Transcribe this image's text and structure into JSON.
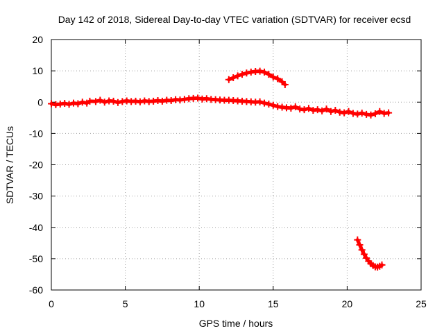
{
  "chart_data": {
    "type": "scatter",
    "title": "Day 142 of 2018, Sidereal Day-to-day VTEC variation (SDTVAR) for receiver ecsd",
    "xlabel": "GPS time / hours",
    "ylabel": "SDTVAR / TECUs",
    "xlim": [
      0,
      25
    ],
    "ylim": [
      -60,
      20
    ],
    "xticks": [
      0,
      5,
      10,
      15,
      20,
      25
    ],
    "yticks": [
      -60,
      -50,
      -40,
      -30,
      -20,
      -10,
      0,
      10,
      20
    ],
    "xtick_labels": [
      "0",
      "5",
      "10",
      "15",
      "20",
      "25"
    ],
    "ytick_labels": [
      "-60",
      "-50",
      "-40",
      "-30",
      "-20",
      "-10",
      "0",
      "10",
      "20"
    ],
    "grid": true,
    "legend": null,
    "marker": "plus",
    "color": "#ff0000",
    "series": [
      {
        "name": "main track",
        "points": [
          [
            0.0,
            -0.5
          ],
          [
            0.3,
            -0.8
          ],
          [
            0.6,
            -0.6
          ],
          [
            0.9,
            -0.4
          ],
          [
            1.2,
            -0.7
          ],
          [
            1.5,
            -0.3
          ],
          [
            1.8,
            -0.5
          ],
          [
            2.1,
            0.0
          ],
          [
            2.4,
            -0.3
          ],
          [
            2.6,
            0.3
          ],
          [
            3.0,
            0.2
          ],
          [
            3.3,
            0.6
          ],
          [
            3.6,
            0.0
          ],
          [
            3.9,
            0.4
          ],
          [
            4.2,
            0.3
          ],
          [
            4.5,
            -0.1
          ],
          [
            4.8,
            0.2
          ],
          [
            5.1,
            0.4
          ],
          [
            5.4,
            0.2
          ],
          [
            5.7,
            0.3
          ],
          [
            6.0,
            0.1
          ],
          [
            6.3,
            0.4
          ],
          [
            6.6,
            0.2
          ],
          [
            6.9,
            0.3
          ],
          [
            7.2,
            0.5
          ],
          [
            7.5,
            0.3
          ],
          [
            7.8,
            0.6
          ],
          [
            8.1,
            0.5
          ],
          [
            8.4,
            0.8
          ],
          [
            8.7,
            0.7
          ],
          [
            9.0,
            0.9
          ],
          [
            9.3,
            1.1
          ],
          [
            9.6,
            1.2
          ],
          [
            9.9,
            1.3
          ],
          [
            10.2,
            1.0
          ],
          [
            10.5,
            1.1
          ],
          [
            10.8,
            0.9
          ],
          [
            11.1,
            0.8
          ],
          [
            11.4,
            0.7
          ],
          [
            11.7,
            0.6
          ],
          [
            12.0,
            0.6
          ],
          [
            12.3,
            0.5
          ],
          [
            12.6,
            0.4
          ],
          [
            12.9,
            0.3
          ],
          [
            13.2,
            0.2
          ],
          [
            13.5,
            0.1
          ],
          [
            13.8,
            0.0
          ],
          [
            14.1,
            0.1
          ],
          [
            14.4,
            -0.3
          ],
          [
            14.7,
            -0.6
          ],
          [
            15.0,
            -1.0
          ],
          [
            15.3,
            -1.4
          ],
          [
            15.6,
            -1.6
          ],
          [
            15.9,
            -1.8
          ],
          [
            16.2,
            -1.9
          ],
          [
            16.5,
            -1.5
          ],
          [
            16.8,
            -2.2
          ],
          [
            17.1,
            -2.4
          ],
          [
            17.4,
            -2.0
          ],
          [
            17.7,
            -2.6
          ],
          [
            18.0,
            -2.4
          ],
          [
            18.3,
            -2.8
          ],
          [
            18.6,
            -2.2
          ],
          [
            18.9,
            -3.0
          ],
          [
            19.2,
            -2.6
          ],
          [
            19.5,
            -3.2
          ],
          [
            19.8,
            -3.4
          ],
          [
            20.1,
            -3.0
          ],
          [
            20.4,
            -3.6
          ],
          [
            20.7,
            -3.8
          ],
          [
            21.0,
            -3.5
          ],
          [
            21.3,
            -3.9
          ],
          [
            21.6,
            -4.1
          ],
          [
            21.9,
            -3.7
          ],
          [
            22.2,
            -3.0
          ],
          [
            22.5,
            -3.6
          ],
          [
            22.8,
            -3.4
          ]
        ]
      },
      {
        "name": "upper arc",
        "points": [
          [
            12.0,
            7.2
          ],
          [
            12.3,
            7.8
          ],
          [
            12.6,
            8.4
          ],
          [
            12.9,
            8.9
          ],
          [
            13.2,
            9.3
          ],
          [
            13.5,
            9.6
          ],
          [
            13.8,
            9.8
          ],
          [
            14.1,
            9.9
          ],
          [
            14.4,
            9.6
          ],
          [
            14.7,
            8.9
          ],
          [
            15.0,
            8.0
          ],
          [
            15.3,
            7.5
          ],
          [
            15.6,
            6.5
          ],
          [
            15.8,
            5.6
          ]
        ]
      },
      {
        "name": "lower arc",
        "points": [
          [
            20.7,
            -44.0
          ],
          [
            20.85,
            -45.6
          ],
          [
            21.0,
            -47.2
          ],
          [
            21.15,
            -48.6
          ],
          [
            21.3,
            -49.8
          ],
          [
            21.45,
            -50.8
          ],
          [
            21.6,
            -51.6
          ],
          [
            21.75,
            -52.2
          ],
          [
            21.9,
            -52.6
          ],
          [
            22.05,
            -52.7
          ],
          [
            22.2,
            -52.4
          ],
          [
            22.35,
            -52.0
          ]
        ]
      }
    ]
  }
}
